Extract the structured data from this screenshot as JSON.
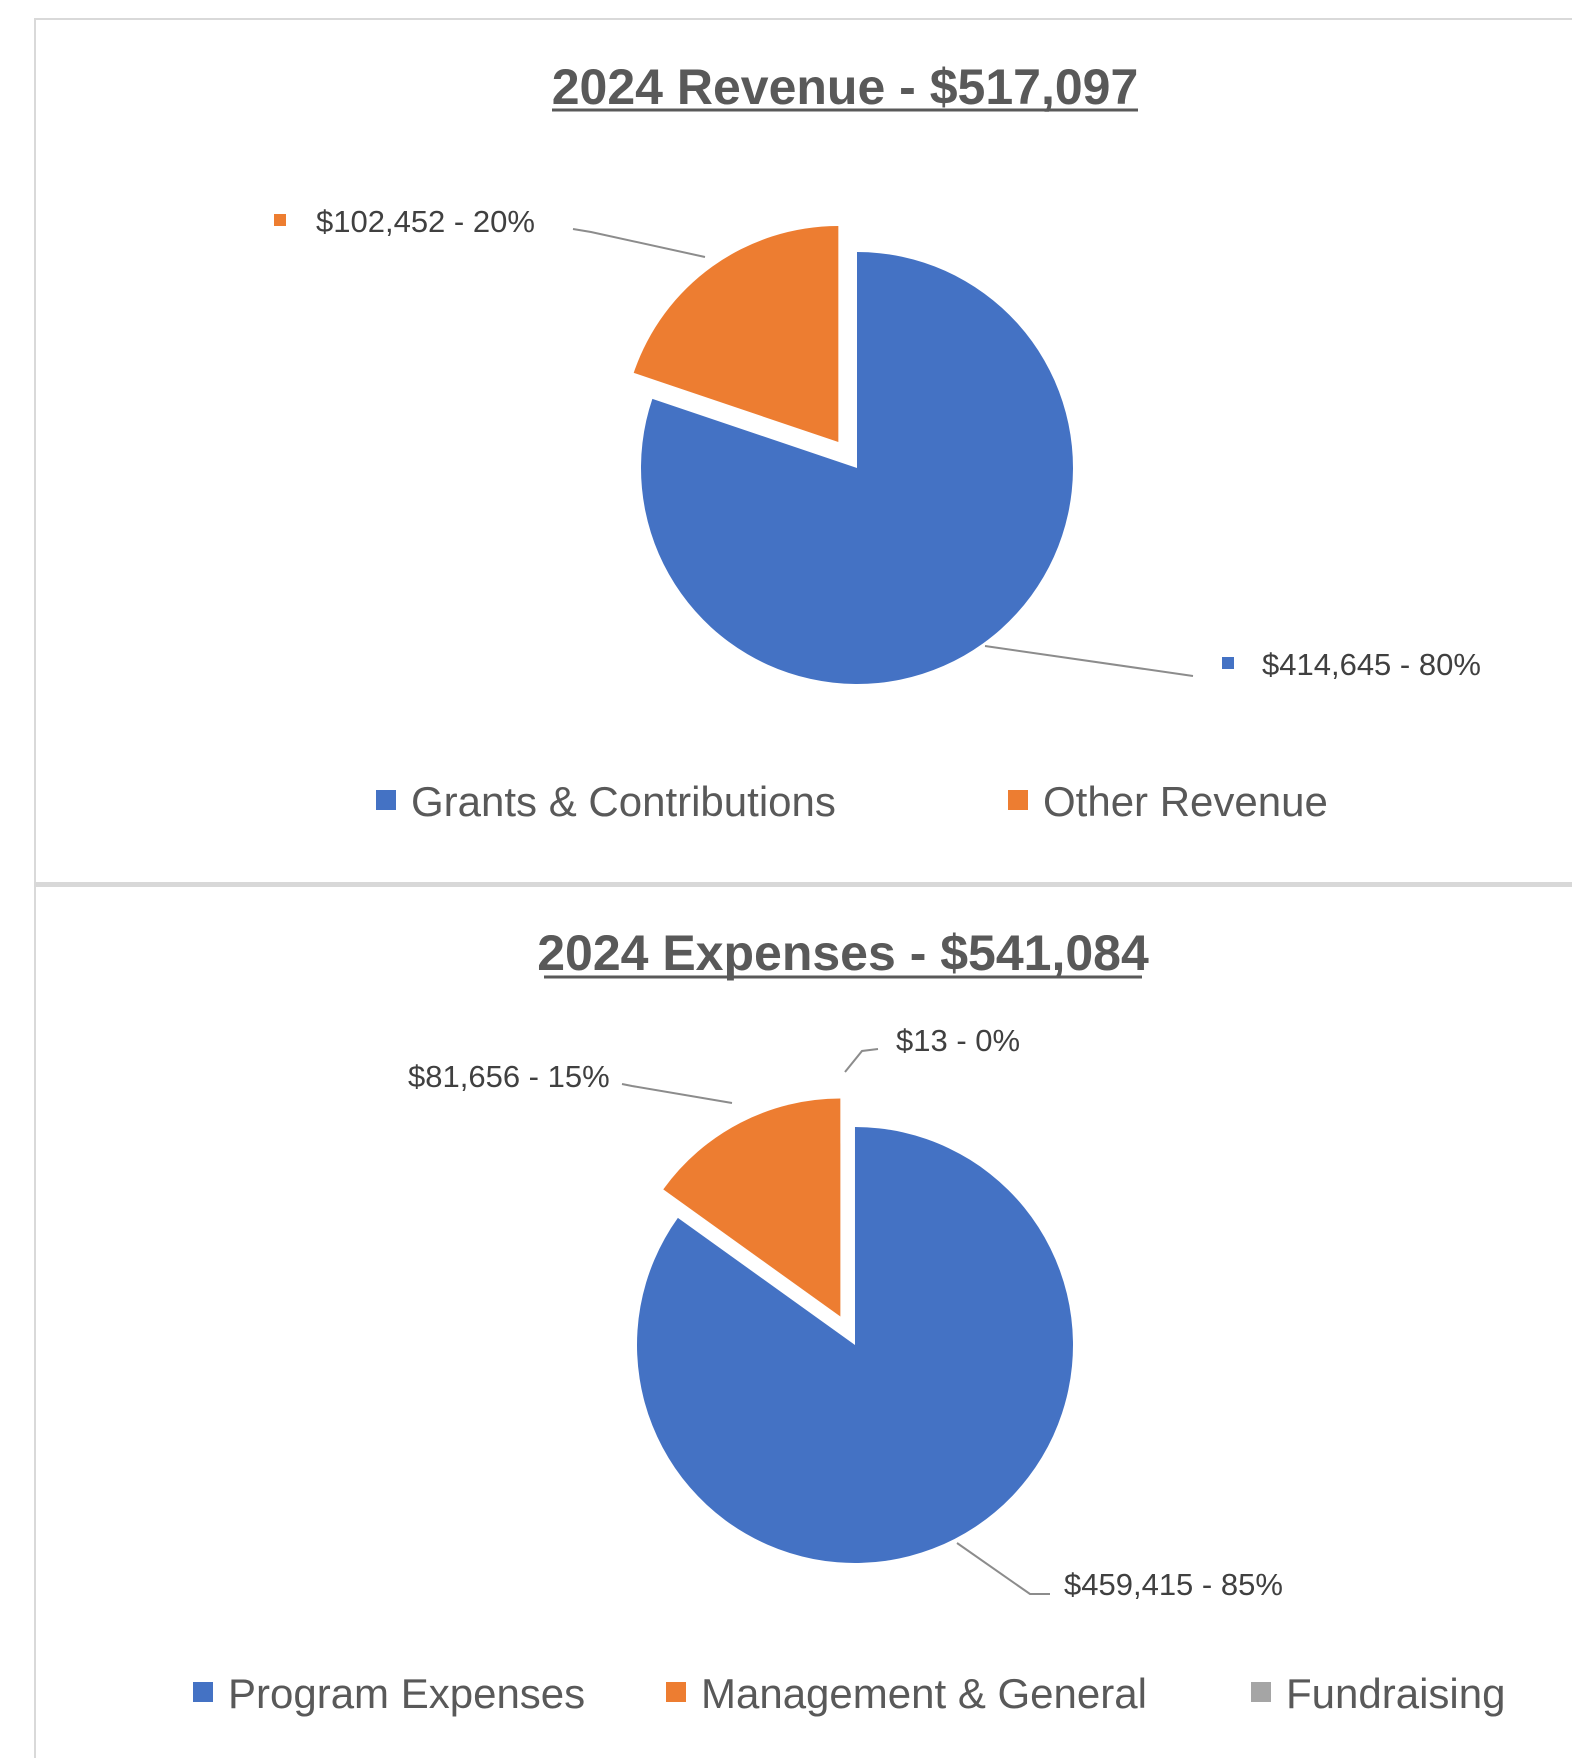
{
  "chart_data": [
    {
      "type": "pie",
      "title": "2024 Revenue - $517,097",
      "categories": [
        "Grants & Contributions",
        "Other Revenue"
      ],
      "values": [
        414645,
        102452
      ],
      "percents": [
        80,
        20
      ],
      "colors": [
        "#4472c4",
        "#ed7d31"
      ],
      "data_labels": [
        "$414,645  - 80%",
        "$102,452  - 20%"
      ],
      "label_markers": true,
      "legend": [
        "Grants & Contributions",
        "Other Revenue"
      ],
      "legend_position": "bottom"
    },
    {
      "type": "pie",
      "title": "2024 Expenses - $541,084",
      "categories": [
        "Program Expenses",
        "Management & General",
        "Fundraising"
      ],
      "values": [
        459415,
        81656,
        13
      ],
      "percents": [
        85,
        15,
        0
      ],
      "colors": [
        "#4472c4",
        "#ed7d31",
        "#a5a5a5"
      ],
      "data_labels": [
        "$459,415 - 85%",
        "$81,656 - 15%",
        "$13 - 0%"
      ],
      "label_markers": false,
      "legend": [
        "Program Expenses",
        "Management & General",
        "Fundraising"
      ],
      "legend_position": "bottom"
    }
  ]
}
